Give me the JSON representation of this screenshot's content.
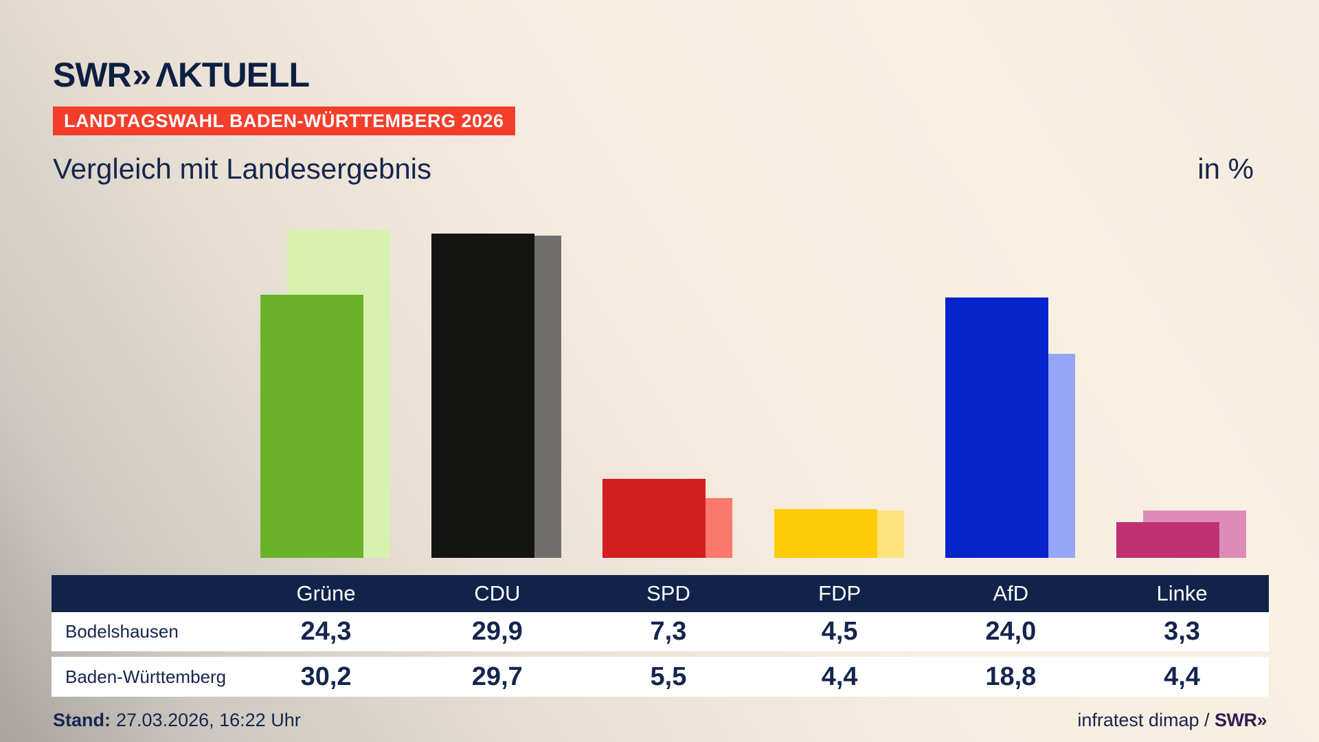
{
  "header": {
    "logo": {
      "swr": "SWR",
      "chevrons": "»",
      "aktuell": "ΛKTUELL"
    },
    "badge": "LANDTAGSWAHL BADEN-WÜRTTEMBERG 2026",
    "title": "Vergleich mit Landesergebnis",
    "unit_label": "in %"
  },
  "chart_data": {
    "type": "bar",
    "title": "Vergleich mit Landesergebnis",
    "unit": "in %",
    "categories": [
      "Grüne",
      "CDU",
      "SPD",
      "FDP",
      "AfD",
      "Linke"
    ],
    "series": [
      {
        "name": "Bodelshausen",
        "values": [
          24.3,
          29.9,
          7.3,
          4.5,
          24.0,
          3.3
        ]
      },
      {
        "name": "Baden-Württemberg",
        "values": [
          30.2,
          29.7,
          5.5,
          4.4,
          18.8,
          4.4
        ]
      }
    ],
    "colors": {
      "main": [
        "#69b22a",
        "#141413",
        "#d21e1e",
        "#ffcc07",
        "#0723cb",
        "#bf3173"
      ],
      "light": [
        "#d6f2ae",
        "#716f6e",
        "#fa786c",
        "#ffe37d",
        "#95a6f7",
        "#dd8bb9"
      ]
    },
    "ylim": [
      0,
      32
    ],
    "grid": false,
    "legend_position": "table below chart"
  },
  "table": {
    "columns": [
      "Grüne",
      "CDU",
      "SPD",
      "FDP",
      "AfD",
      "Linke"
    ],
    "row_labels": [
      "Bodelshausen",
      "Baden-Württemberg"
    ],
    "rows": [
      [
        "24,3",
        "29,9",
        "7,3",
        "4,5",
        "24,0",
        "3,3"
      ],
      [
        "30,2",
        "29,7",
        "5,5",
        "4,4",
        "18,8",
        "4,4"
      ]
    ]
  },
  "footer": {
    "stand_label": "Stand:",
    "stand_value": "27.03.2026, 16:22 Uhr",
    "source_text": "infratest dimap / ",
    "source_logo": "SWR»"
  },
  "colors": {
    "navy_text": "#14264e",
    "logo_navy": "#0d1f42",
    "badge_red": "#f43e2c",
    "badge_text": "#ffffff",
    "table_header_bg": "#12234a",
    "table_row_bg": "#ffffff",
    "source_logo_purple": "#321d55"
  }
}
